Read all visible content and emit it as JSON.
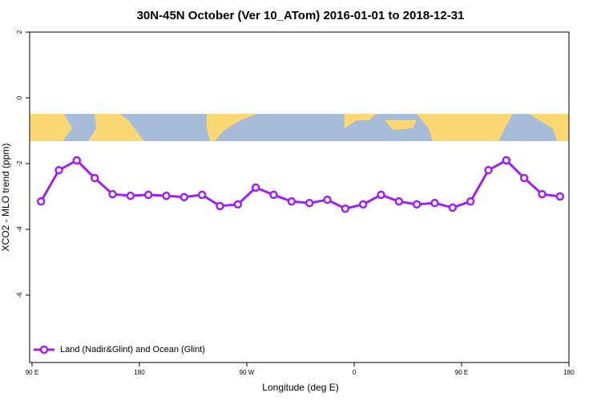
{
  "chart_data": {
    "type": "line",
    "title": "30N-45N October (Ver 10_ATom)   2016-01-01 to 2018-12-31",
    "x_label": "Longitude (deg E)",
    "y_label": "XCO2 - MLO trend (ppm)",
    "x": [
      97.5,
      112.5,
      127.5,
      142.5,
      157.5,
      172.5,
      187.5,
      202.5,
      217.5,
      232.5,
      247.5,
      262.5,
      277.5,
      292.5,
      307.5,
      322.5,
      337.5,
      352.5,
      367.5,
      382.5,
      397.5,
      412.5,
      427.5,
      442.5,
      457.5,
      472.5,
      487.5,
      502.5,
      517.5,
      532.5
    ],
    "series": [
      {
        "name": "Land (Nadir&Glint) and Ocean (Glint)",
        "color": "#a020f0",
        "values": [
          -3.15,
          -2.2,
          -1.9,
          -2.44,
          -2.93,
          -2.98,
          -2.95,
          -2.98,
          -3.02,
          -2.95,
          -3.29,
          -3.24,
          -2.73,
          -2.95,
          -3.15,
          -3.2,
          -3.1,
          -3.37,
          -3.24,
          -2.95,
          -3.15,
          -3.24,
          -3.2,
          -3.34,
          -3.15,
          -2.2,
          -1.9,
          -2.44,
          -2.93,
          -3.0
        ]
      }
    ],
    "xlim": [
      88,
      540
    ],
    "xticks": [
      {
        "value": 90,
        "label": "90 E"
      },
      {
        "value": 180,
        "label": "180"
      },
      {
        "value": 270,
        "label": "90 W"
      },
      {
        "value": 360,
        "label": "0"
      },
      {
        "value": 450,
        "label": "90 E"
      },
      {
        "value": 540,
        "label": "180"
      }
    ],
    "ylim": [
      -8.05,
      2
    ],
    "yticks": [
      2,
      0,
      -2,
      -4,
      -6
    ],
    "legend": "bottom-left"
  }
}
